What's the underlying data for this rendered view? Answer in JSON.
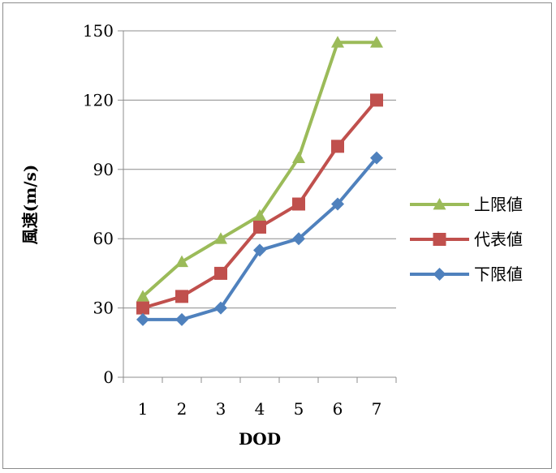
{
  "chart_data": {
    "type": "line",
    "xlabel": "DOD",
    "ylabel": "風速(m/s)",
    "categories": [
      "1",
      "2",
      "3",
      "4",
      "5",
      "6",
      "7"
    ],
    "ylim": [
      0,
      150
    ],
    "yticks": [
      0,
      30,
      60,
      90,
      120,
      150
    ],
    "grid": "horizontal",
    "legend_position": "right",
    "series": [
      {
        "name": "上限値",
        "color": "#9bbb59",
        "marker": "triangle",
        "values": [
          35,
          50,
          60,
          70,
          95,
          145,
          145
        ]
      },
      {
        "name": "代表値",
        "color": "#c0504d",
        "marker": "square",
        "values": [
          30,
          35,
          45,
          65,
          75,
          100,
          120
        ]
      },
      {
        "name": "下限値",
        "color": "#4f81bd",
        "marker": "diamond",
        "values": [
          25,
          25,
          30,
          55,
          60,
          75,
          95
        ]
      }
    ]
  }
}
